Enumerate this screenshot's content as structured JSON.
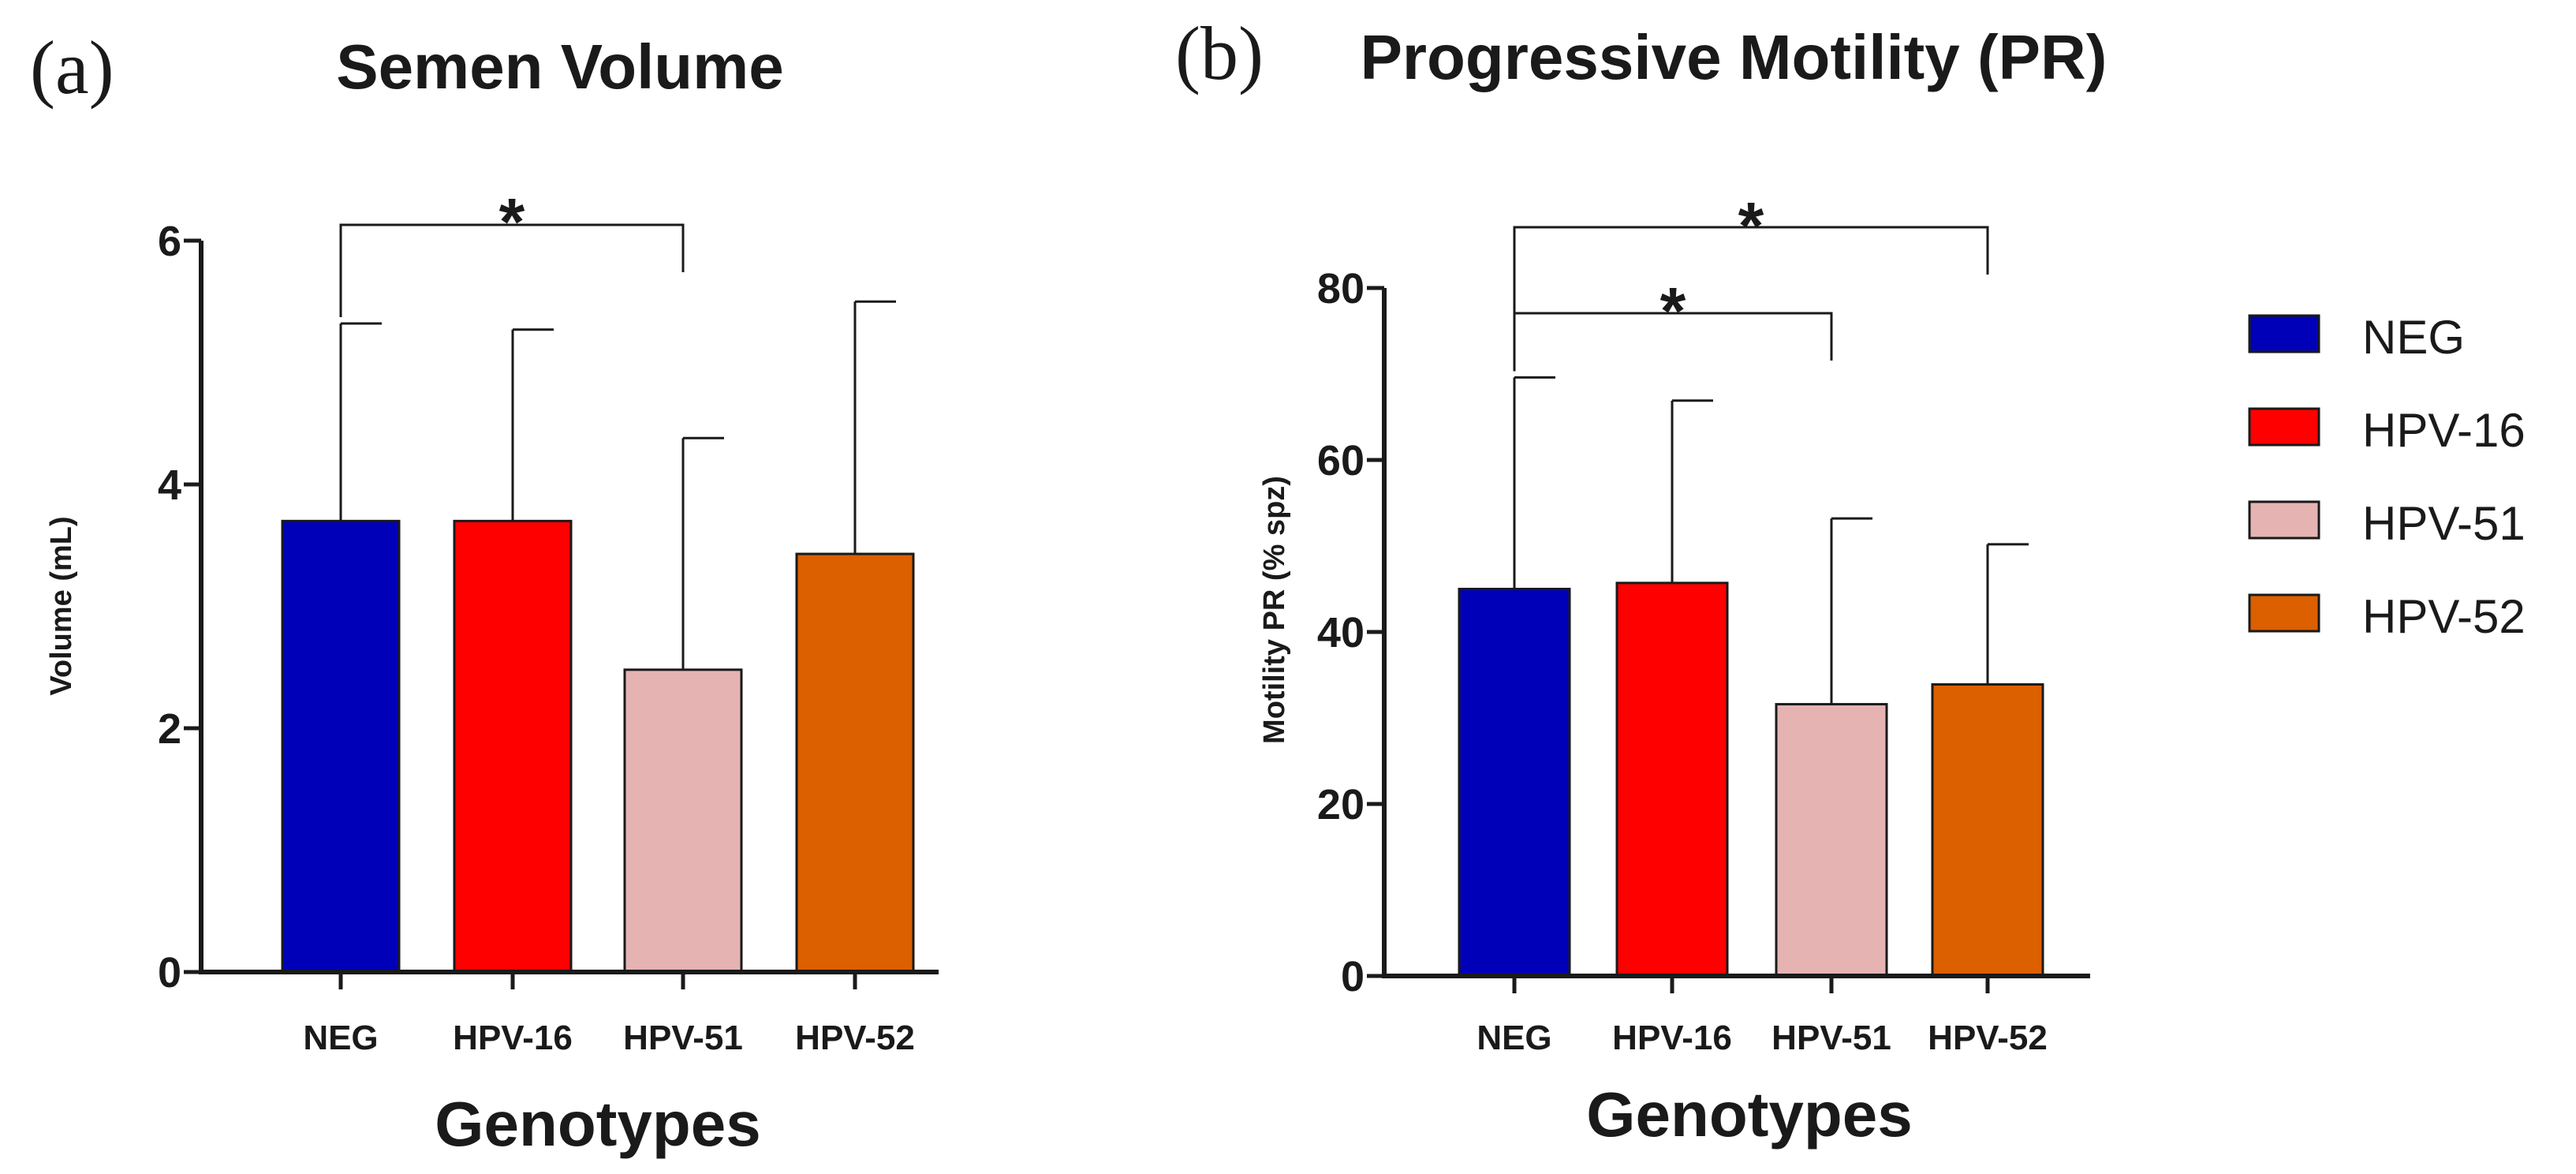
{
  "chart_data": [
    {
      "type": "bar",
      "panel": "(a)",
      "title": "Semen Volume",
      "xlabel": "Genotypes",
      "ylabel": "Volume (mL)",
      "categories": [
        "NEG",
        "HPV-16",
        "HPV-51",
        "HPV-52"
      ],
      "values": [
        3.7,
        3.7,
        2.48,
        3.43
      ],
      "error_upper": [
        5.32,
        5.27,
        4.38,
        5.5
      ],
      "ylim": [
        0,
        6
      ],
      "yticks": [
        0,
        2,
        4,
        6
      ],
      "colors": [
        "#0000b8",
        "#ff0000",
        "#e6b3b3",
        "#dc5f00"
      ],
      "significance": [
        {
          "from": 0,
          "to": 2,
          "label": "*"
        }
      ]
    },
    {
      "type": "bar",
      "panel": "(b)",
      "title": "Progressive Motility (PR)",
      "xlabel": "Genotypes",
      "ylabel": "Motility PR (% spz)",
      "categories": [
        "NEG",
        "HPV-16",
        "HPV-51",
        "HPV-52"
      ],
      "values": [
        45,
        45.7,
        31.6,
        33.9
      ],
      "error_upper": [
        69.6,
        66.9,
        53.2,
        50.2
      ],
      "ylim": [
        0,
        80
      ],
      "yticks": [
        0,
        20,
        40,
        60,
        80
      ],
      "colors": [
        "#0000b8",
        "#ff0000",
        "#e6b3b3",
        "#dc5f00"
      ],
      "significance": [
        {
          "from": 0,
          "to": 2,
          "label": "*"
        },
        {
          "from": 0,
          "to": 3,
          "label": "*"
        }
      ]
    }
  ],
  "legend": {
    "entries": [
      {
        "label": "NEG",
        "color": "#0000b8"
      },
      {
        "label": "HPV-16",
        "color": "#ff0000"
      },
      {
        "label": "HPV-51",
        "color": "#e6b3b3"
      },
      {
        "label": "HPV-52",
        "color": "#dc5f00"
      }
    ]
  }
}
